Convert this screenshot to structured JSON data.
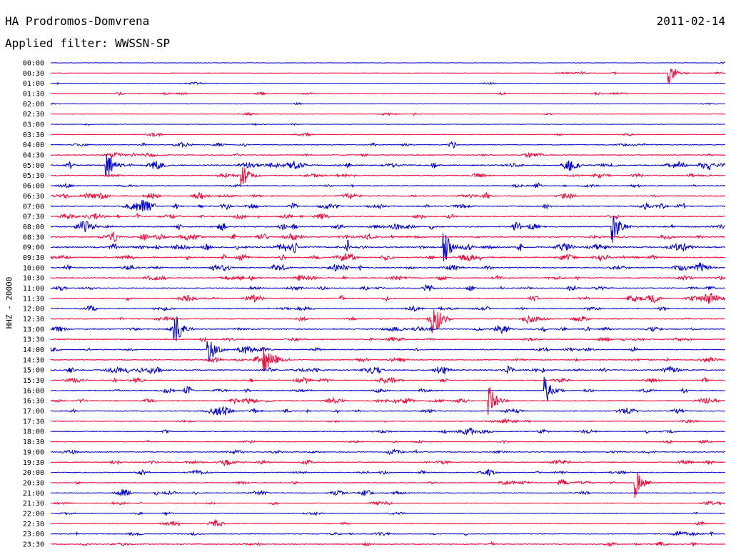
{
  "header": {
    "station": "HA Prodromos-Domvrena",
    "date": "2011-02-14",
    "filter": "Applied filter: WWSSN-SP",
    "channel_label": "HHZ - 20000"
  },
  "colors": {
    "even_trace": "#0000cc",
    "odd_trace": "#ff0033",
    "background": "#ffffff"
  },
  "chart_data": {
    "type": "line",
    "title": "HA Prodromos-Domvrena",
    "subtitle": "Applied filter: WWSSN-SP",
    "ylabel": "HHZ - 20000",
    "xlabel": "",
    "grid": false,
    "categories": [
      "00:00",
      "00:30",
      "01:00",
      "01:30",
      "02:00",
      "02:30",
      "03:00",
      "03:30",
      "04:00",
      "04:30",
      "05:00",
      "05:30",
      "06:00",
      "06:30",
      "07:00",
      "07:30",
      "08:00",
      "08:30",
      "09:00",
      "09:30",
      "10:00",
      "10:30",
      "11:00",
      "11:30",
      "12:00",
      "12:30",
      "13:00",
      "13:30",
      "14:00",
      "14:30",
      "15:00",
      "15:30",
      "16:00",
      "16:30",
      "17:00",
      "17:30",
      "18:00",
      "18:30",
      "19:00",
      "19:30",
      "20:00",
      "20:30",
      "21:00",
      "21:30",
      "22:00",
      "22:30",
      "23:00",
      "23:30"
    ],
    "trace_activity": [
      0.05,
      0.15,
      0.1,
      0.3,
      0.1,
      0.15,
      0.1,
      0.2,
      0.4,
      0.4,
      0.8,
      0.5,
      0.45,
      0.6,
      0.7,
      0.6,
      0.8,
      0.7,
      0.9,
      0.7,
      0.7,
      0.6,
      0.6,
      0.6,
      0.5,
      0.5,
      0.6,
      0.5,
      0.5,
      0.5,
      0.8,
      0.5,
      0.5,
      0.5,
      0.5,
      0.3,
      0.4,
      0.3,
      0.4,
      0.5,
      0.4,
      0.4,
      0.4,
      0.3,
      0.2,
      0.3,
      0.4,
      0.4
    ],
    "events": [
      {
        "trace": "00:30",
        "minute": 27.5,
        "amplitude": 16
      },
      {
        "trace": "09:00",
        "minute": 17.5,
        "amplitude": 26
      },
      {
        "trace": "08:00",
        "minute": 25.0,
        "amplitude": 24
      },
      {
        "trace": "05:00",
        "minute": 2.5,
        "amplitude": 20
      },
      {
        "trace": "05:30",
        "minute": 8.5,
        "amplitude": 18
      },
      {
        "trace": "12:30",
        "minute": 17.0,
        "amplitude": 30
      },
      {
        "trace": "13:00",
        "minute": 5.5,
        "amplitude": 25
      },
      {
        "trace": "14:00",
        "minute": 7.0,
        "amplitude": 24
      },
      {
        "trace": "14:30",
        "minute": 9.5,
        "amplitude": 20
      },
      {
        "trace": "16:00",
        "minute": 22.0,
        "amplitude": 22
      },
      {
        "trace": "16:30",
        "minute": 19.5,
        "amplitude": 22
      },
      {
        "trace": "20:30",
        "minute": 26.0,
        "amplitude": 22
      }
    ]
  }
}
